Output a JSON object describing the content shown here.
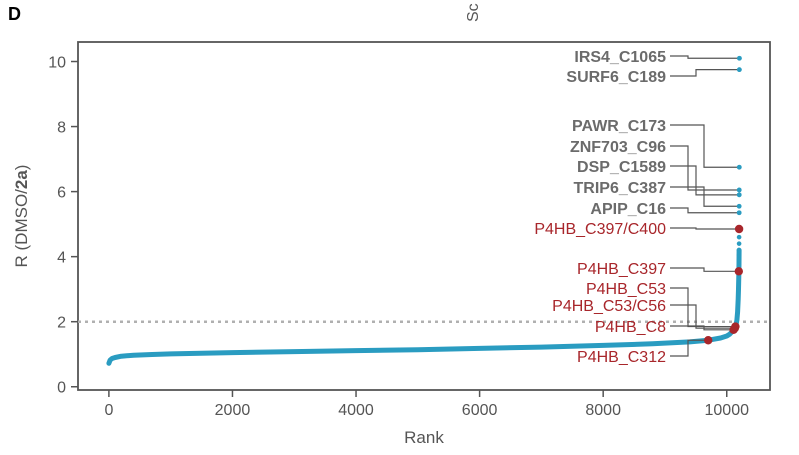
{
  "panel_letter": "D",
  "chart_data": {
    "type": "scatter",
    "title": "",
    "top_fragment": "Sc",
    "xlabel": "Rank",
    "ylabel_prefix": "R (DMSO/",
    "ylabel_bold": "2a",
    "ylabel_suffix": ")",
    "xlim": [
      -500,
      10700
    ],
    "ylim": [
      -0.1,
      10.6
    ],
    "xticks": [
      0,
      2000,
      4000,
      6000,
      8000,
      10000
    ],
    "yticks": [
      0,
      2,
      4,
      6,
      8,
      10
    ],
    "grid": false,
    "threshold_line": 2,
    "series_color": "#2a9cc1",
    "highlight_color": "#a8262b",
    "bold_label_color": "#6b6b6b",
    "curve_points": [
      [
        0,
        0.72
      ],
      [
        20,
        0.82
      ],
      [
        50,
        0.87
      ],
      [
        100,
        0.9
      ],
      [
        200,
        0.94
      ],
      [
        400,
        0.97
      ],
      [
        700,
        0.99
      ],
      [
        1000,
        1.01
      ],
      [
        2000,
        1.05
      ],
      [
        3000,
        1.08
      ],
      [
        4000,
        1.11
      ],
      [
        5000,
        1.14
      ],
      [
        6000,
        1.18
      ],
      [
        7000,
        1.22
      ],
      [
        8000,
        1.27
      ],
      [
        8800,
        1.32
      ],
      [
        9400,
        1.38
      ],
      [
        9700,
        1.43
      ],
      [
        9900,
        1.5
      ],
      [
        10000,
        1.56
      ],
      [
        10050,
        1.62
      ],
      [
        10100,
        1.72
      ],
      [
        10130,
        1.8
      ],
      [
        10150,
        1.9
      ],
      [
        10165,
        2.05
      ],
      [
        10175,
        2.3
      ],
      [
        10185,
        2.7
      ],
      [
        10190,
        3.0
      ],
      [
        10195,
        3.4
      ],
      [
        10198,
        3.8
      ],
      [
        10200,
        4.2
      ]
    ],
    "upper_points": [
      [
        10195,
        3.6
      ],
      [
        10198,
        3.75
      ],
      [
        10198,
        3.9
      ],
      [
        10199,
        4.05
      ],
      [
        10199,
        4.2
      ],
      [
        10200,
        4.4
      ],
      [
        10200,
        4.6
      ],
      [
        10200,
        4.9
      ],
      [
        10201,
        5.35
      ],
      [
        10202,
        5.9
      ],
      [
        10202,
        6.05
      ],
      [
        10203,
        6.75
      ],
      [
        10204,
        9.75
      ],
      [
        10205,
        10.1
      ]
    ],
    "labeled_points": [
      {
        "label": "IRS4_C1065",
        "x": 10205,
        "y": 10.1,
        "style": "bold"
      },
      {
        "label": "SURF6_C189",
        "x": 10204,
        "y": 9.75,
        "style": "bold"
      },
      {
        "label": "PAWR_C173",
        "x": 10203,
        "y": 6.75,
        "style": "bold"
      },
      {
        "label": "ZNF703_C96",
        "x": 10202,
        "y": 6.05,
        "style": "bold"
      },
      {
        "label": "DSP_C1589",
        "x": 10202,
        "y": 5.9,
        "style": "bold"
      },
      {
        "label": "TRIP6_C387",
        "x": 10201,
        "y": 5.55,
        "style": "bold"
      },
      {
        "label": "APIP_C16",
        "x": 10201,
        "y": 5.35,
        "style": "bold"
      },
      {
        "label": "P4HB_C397/C400",
        "x": 10200,
        "y": 4.85,
        "style": "red"
      },
      {
        "label": "P4HB_C397",
        "x": 10195,
        "y": 3.55,
        "style": "red"
      },
      {
        "label": "P4HB_C53",
        "x": 10140,
        "y": 1.85,
        "style": "red"
      },
      {
        "label": "P4HB_C53/C56",
        "x": 10130,
        "y": 1.8,
        "style": "red"
      },
      {
        "label": "P4HB_C8",
        "x": 10110,
        "y": 1.75,
        "style": "red"
      },
      {
        "label": "P4HB_C312",
        "x": 9700,
        "y": 1.43,
        "style": "red"
      }
    ]
  }
}
